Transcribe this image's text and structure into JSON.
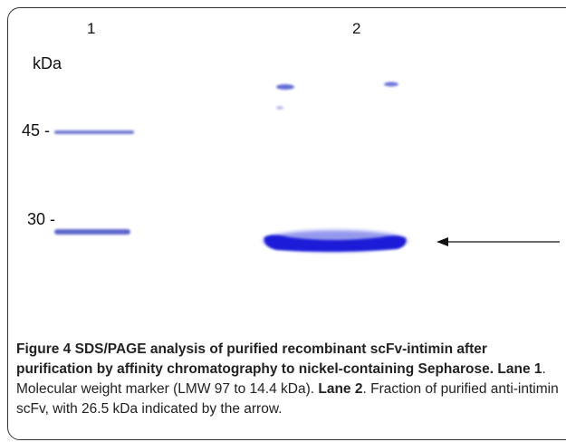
{
  "gel": {
    "lane_labels": [
      "1",
      "2"
    ],
    "unit_label": "kDa",
    "marker_labels": [
      "45 -",
      "30 -"
    ],
    "band_color": "#1a1fd8",
    "marker_color": "#5a62cc",
    "arrow_color": "#111111"
  },
  "caption": {
    "figure_label": "Figure 4",
    "title": "SDS/PAGE analysis of purified recombinant scFv-intimin after purification by affinity chromatography to nickel-containing Sepharose",
    "lane1_label": "Lane 1",
    "lane1_text": ". Molecular weight marker (LMW 97 to 14.4 kDa). ",
    "lane2_label": "Lane 2",
    "lane2_text": ". Fraction of purified anti-intimin scFv, with 26.5 kDa indicated by the arrow."
  }
}
